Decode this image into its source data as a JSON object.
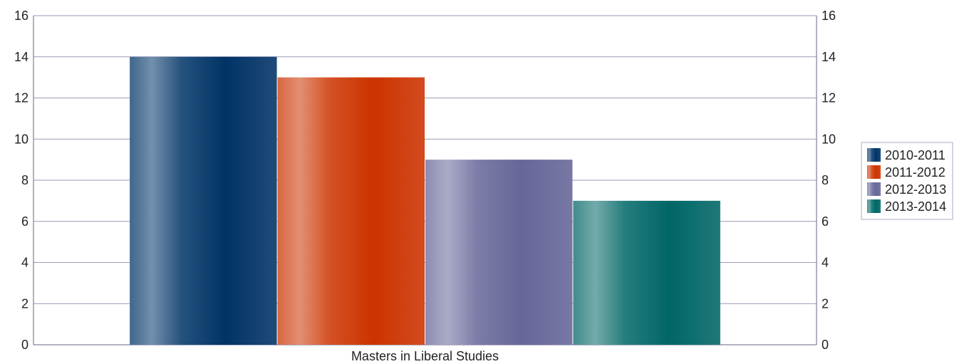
{
  "chart_data": {
    "type": "bar",
    "categories": [
      "Masters in Liberal Studies"
    ],
    "series": [
      {
        "name": "2010-2011",
        "values": [
          14
        ],
        "color": "#003366"
      },
      {
        "name": "2011-2012",
        "values": [
          13
        ],
        "color": "#cc3300"
      },
      {
        "name": "2012-2013",
        "values": [
          9
        ],
        "color": "#666699"
      },
      {
        "name": "2013-2014",
        "values": [
          7
        ],
        "color": "#006666"
      }
    ],
    "ylim": [
      0,
      16
    ],
    "yticks": [
      0,
      2,
      4,
      6,
      8,
      10,
      12,
      14,
      16
    ],
    "y_axes": "left-and-right",
    "grid": true,
    "legend_position": "right"
  }
}
